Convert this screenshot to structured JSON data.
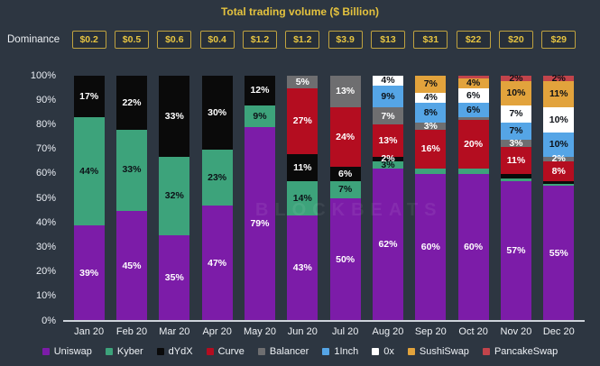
{
  "page": {
    "title": "Total trading volume ($ Billion)",
    "dominance_label": "Dominance",
    "watermark": "BLOCKBEATS"
  },
  "colors": {
    "background": "#2d3641",
    "title_text": "#e4c23e",
    "dominance_border": "#bfa23f",
    "dominance_text": "#e6c441",
    "axis_text": "#e9edf3",
    "baseline": "#cdd3da"
  },
  "dominance_values": [
    "$0.2",
    "$0.5",
    "$0.6",
    "$0.4",
    "$1.2",
    "$1.2",
    "$3.9",
    "$13",
    "$31",
    "$22",
    "$20",
    "$29"
  ],
  "chart_data": {
    "type": "bar",
    "stacked": true,
    "percent": true,
    "title": "Total trading volume ($ Billion)",
    "categories": [
      "Jan 20",
      "Feb 20",
      "Mar 20",
      "Apr 20",
      "May 20",
      "Jun 20",
      "Jul 20",
      "Aug 20",
      "Sep 20",
      "Oct 20",
      "Nov 20",
      "Dec 20"
    ],
    "ylim": [
      0,
      100
    ],
    "y_ticks": [
      "0%",
      "10%",
      "20%",
      "30%",
      "40%",
      "50%",
      "60%",
      "70%",
      "80%",
      "90%",
      "100%"
    ],
    "grid": false,
    "legend_position": "bottom",
    "series": [
      {
        "name": "Uniswap",
        "color": "#7c1ca8",
        "label_color": "#ffffff",
        "values": [
          39,
          45,
          35,
          47,
          79,
          43,
          50,
          62,
          60,
          60,
          57,
          55
        ],
        "labels": [
          "39%",
          "45%",
          "35%",
          "47%",
          "79%",
          "43%",
          "50%",
          "62%",
          "60%",
          "60%",
          "57%",
          "55%"
        ]
      },
      {
        "name": "Kyber",
        "color": "#3da37b",
        "label_color": "#0d1117",
        "values": [
          44,
          33,
          32,
          23,
          9,
          14,
          7,
          3,
          2,
          2,
          1,
          1
        ],
        "labels": [
          "44%",
          "33%",
          "32%",
          "23%",
          "9%",
          "14%",
          "7%",
          "3%",
          "",
          "",
          "",
          ""
        ]
      },
      {
        "name": "dYdX",
        "color": "#0a0a0a",
        "label_color": "#ffffff",
        "values": [
          17,
          22,
          33,
          30,
          12,
          11,
          6,
          2,
          0,
          0,
          2,
          1
        ],
        "labels": [
          "17%",
          "22%",
          "33%",
          "30%",
          "12%",
          "11%",
          "6%",
          "2%",
          "",
          "",
          "",
          ""
        ]
      },
      {
        "name": "Curve",
        "color": "#b40d20",
        "label_color": "#ffffff",
        "values": [
          0,
          0,
          0,
          0,
          0,
          27,
          24,
          13,
          16,
          20,
          11,
          8
        ],
        "labels": [
          "",
          "",
          "",
          "",
          "",
          "27%",
          "24%",
          "13%",
          "16%",
          "20%",
          "11%",
          "8%"
        ]
      },
      {
        "name": "Balancer",
        "color": "#6e6e70",
        "label_color": "#ffffff",
        "values": [
          0,
          0,
          0,
          0,
          0,
          5,
          13,
          7,
          3,
          1,
          3,
          2
        ],
        "labels": [
          "",
          "",
          "",
          "",
          "",
          "5%",
          "13%",
          "7%",
          "3%",
          "",
          "3%",
          "2%"
        ]
      },
      {
        "name": "1Inch",
        "color": "#55a5e6",
        "label_color": "#0d1117",
        "values": [
          0,
          0,
          0,
          0,
          0,
          0,
          0,
          9,
          8,
          6,
          7,
          10
        ],
        "labels": [
          "",
          "",
          "",
          "",
          "",
          "",
          "",
          "9%",
          "8%",
          "6%",
          "7%",
          "10%"
        ]
      },
      {
        "name": "0x",
        "color": "#ffffff",
        "label_color": "#0d1117",
        "values": [
          0,
          0,
          0,
          0,
          0,
          0,
          0,
          4,
          4,
          6,
          7,
          10
        ],
        "labels": [
          "",
          "",
          "",
          "",
          "",
          "",
          "",
          "4%",
          "4%",
          "6%",
          "7%",
          "10%"
        ]
      },
      {
        "name": "SushiSwap",
        "color": "#e2a33c",
        "label_color": "#0d1117",
        "values": [
          0,
          0,
          0,
          0,
          0,
          0,
          0,
          0,
          7,
          4,
          10,
          11
        ],
        "labels": [
          "",
          "",
          "",
          "",
          "",
          "",
          "",
          "",
          "7%",
          "4%",
          "10%",
          "11%"
        ]
      },
      {
        "name": "PancakeSwap",
        "color": "#c2444b",
        "label_color": "#0d1117",
        "values": [
          0,
          0,
          0,
          0,
          0,
          0,
          0,
          0,
          0,
          1,
          2,
          2
        ],
        "labels": [
          "",
          "",
          "",
          "",
          "",
          "",
          "",
          "",
          "",
          "",
          "2%",
          "2%"
        ]
      }
    ]
  }
}
